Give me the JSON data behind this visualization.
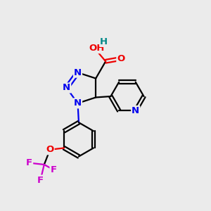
{
  "bg_color": "#ebebeb",
  "bond_color": "#000000",
  "bond_width": 1.6,
  "atom_colors": {
    "N": "#0000ee",
    "O": "#ee0000",
    "F": "#cc00cc",
    "H": "#008888",
    "C": "#000000"
  },
  "font_size": 9.5
}
